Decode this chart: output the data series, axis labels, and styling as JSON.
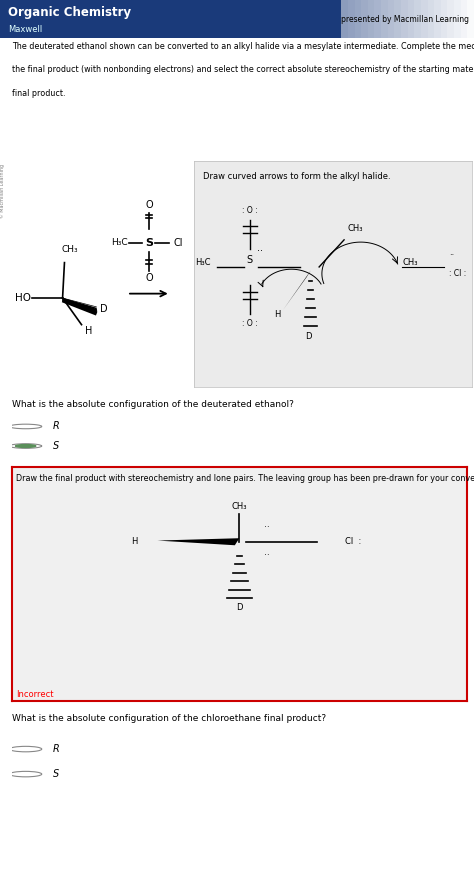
{
  "title": "Organic Chemistry",
  "subtitle": "Maxwell",
  "presented_by": "presented by Macmillan Learning",
  "description1": "The deuterated ethanol shown can be converted to an alkyl halide via a mesylate intermediate. Complete the mechanism, draw",
  "description2": "the final product (with nonbonding electrons) and select the correct absolute stereochemistry of the starting material and the",
  "description3": "final product.",
  "section1_label": "Draw curved arrows to form the alkyl halide.",
  "question1": "What is the absolute configuration of the deuterated ethanol?",
  "section2_label": "Draw the final product with stereochemistry and lone pairs. The leaving group has been pre-drawn for your convenience.",
  "question2": "What is the absolute configuration of the chloroethane final product?",
  "incorrect_label": "Incorrect",
  "header_bg": "#2a4a8a",
  "body_bg": "#ffffff",
  "box1_bg": "#ebebeb",
  "box2_border": "#cc0000",
  "box2_bg": "#f0f0f0",
  "figsize": [
    4.74,
    8.69
  ]
}
